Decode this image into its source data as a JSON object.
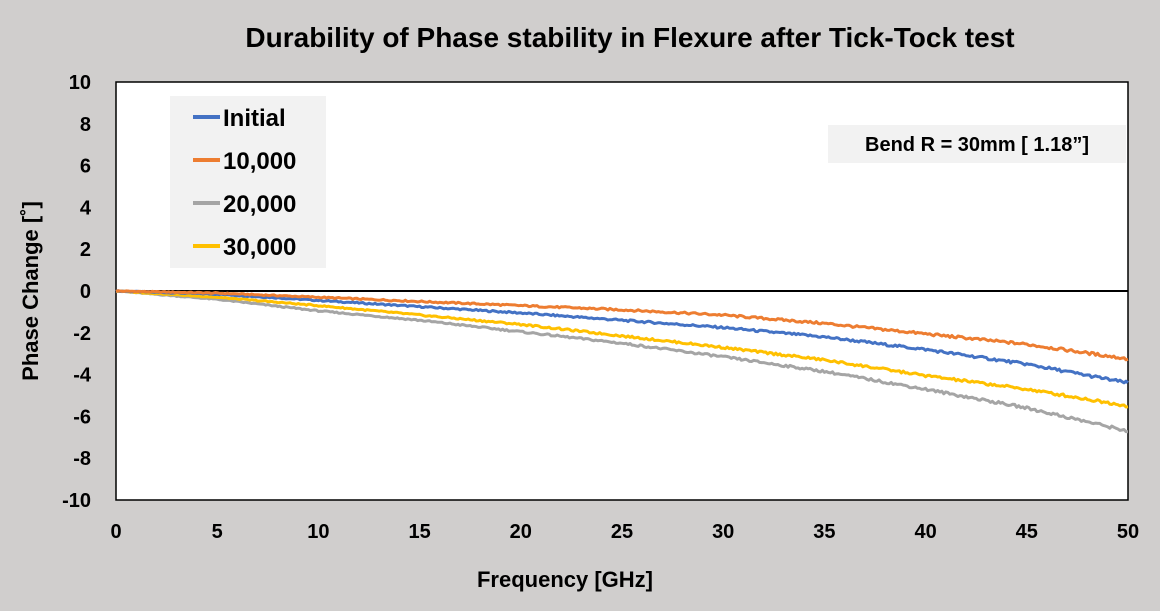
{
  "chart_data": {
    "type": "line",
    "title": "Durability of Phase stability in Flexure after Tick-Tock test",
    "xlabel": "Frequency [GHz]",
    "ylabel": "Phase Change [˚]",
    "xlim": [
      0,
      50
    ],
    "ylim": [
      -10,
      10
    ],
    "x_ticks": [
      0,
      5,
      10,
      15,
      20,
      25,
      30,
      35,
      40,
      45,
      50
    ],
    "y_ticks": [
      10,
      8,
      6,
      4,
      2,
      0,
      -2,
      -4,
      -6,
      -8,
      -10
    ],
    "grid": false,
    "legend_position": "top-left",
    "annotation": "Bend R = 30mm [ 1.18”]",
    "x": [
      0,
      5,
      10,
      15,
      20,
      25,
      30,
      35,
      40,
      45,
      50
    ],
    "series": [
      {
        "name": "Initial",
        "color": "#4472c4",
        "values": [
          0,
          -0.15,
          -0.45,
          -0.75,
          -1.05,
          -1.4,
          -1.75,
          -2.2,
          -2.8,
          -3.5,
          -4.4
        ]
      },
      {
        "name": "10,000",
        "color": "#ed7d31",
        "values": [
          0,
          -0.1,
          -0.3,
          -0.5,
          -0.7,
          -0.9,
          -1.15,
          -1.55,
          -2.05,
          -2.55,
          -3.25
        ]
      },
      {
        "name": "20,000",
        "color": "#a5a5a5",
        "values": [
          0,
          -0.4,
          -0.95,
          -1.4,
          -1.95,
          -2.5,
          -3.15,
          -3.85,
          -4.7,
          -5.6,
          -6.7
        ]
      },
      {
        "name": "30,000",
        "color": "#ffc000",
        "values": [
          0,
          -0.3,
          -0.7,
          -1.15,
          -1.6,
          -2.15,
          -2.7,
          -3.3,
          -4.05,
          -4.7,
          -5.5
        ]
      }
    ]
  }
}
